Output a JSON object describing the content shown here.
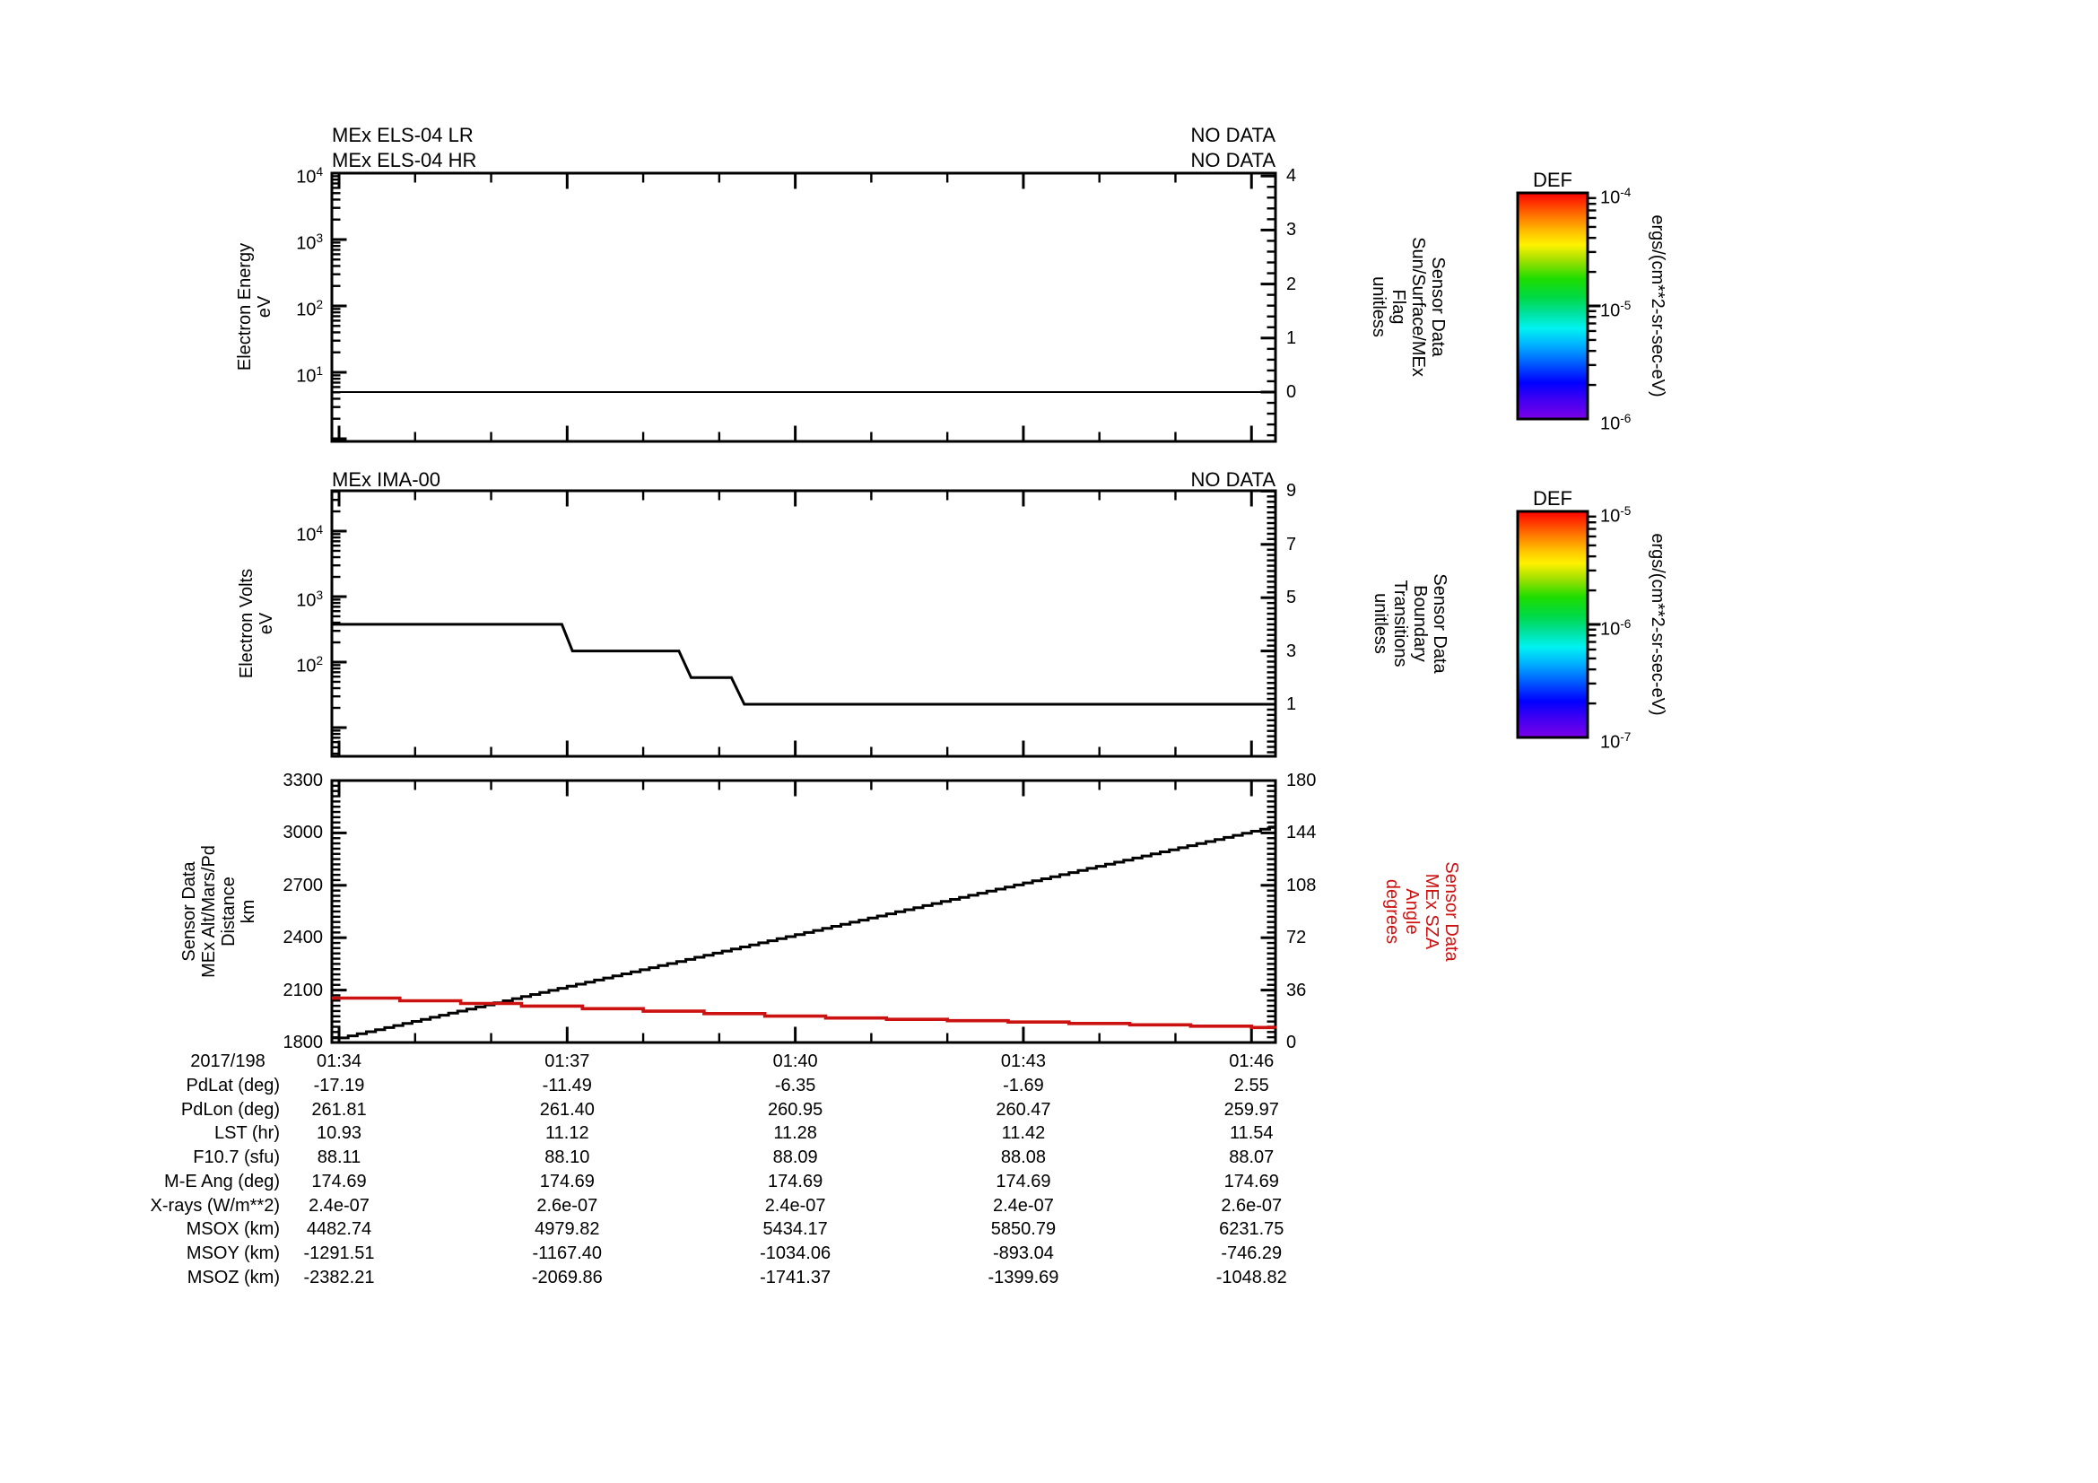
{
  "page": {
    "background": "#ffffff"
  },
  "colors": {
    "red": "#cc1111",
    "black": "#000000"
  },
  "panels": {
    "els": {
      "title_lr": "MEx ELS-04 LR",
      "title_hr": "MEx ELS-04 HR",
      "no_data_lr": "NO DATA",
      "no_data_hr": "NO DATA",
      "left_axis_label_lines": [
        "Electron Energy",
        "eV"
      ],
      "right_axis_label_lines": [
        "Sensor Data",
        "Sun/Surface/MEx",
        "Flag",
        "unitless"
      ],
      "left_tick_exponents": [
        4,
        3,
        2,
        1
      ],
      "right_tick_labels": [
        4,
        3,
        2,
        1,
        0
      ]
    },
    "ima": {
      "title": "MEx IMA-00",
      "no_data": "NO DATA",
      "left_axis_label_lines": [
        "Electron Volts",
        "eV"
      ],
      "right_axis_label_lines": [
        "Sensor Data",
        "Boundary",
        "Transitions",
        "unitless"
      ],
      "left_tick_exponents": [
        4,
        3,
        2
      ],
      "right_tick_labels": [
        9,
        7,
        5,
        3,
        1
      ]
    },
    "alt": {
      "left_axis_label_lines": [
        "Sensor Data",
        "MEx Alt/Mars/Pd",
        "Distance",
        "km"
      ],
      "right_axis_label_lines": [
        "Sensor Data",
        "MEx SZA",
        "Angle",
        "degrees"
      ],
      "left_tick_labels": [
        3300,
        3000,
        2700,
        2400,
        2100,
        1800
      ],
      "right_tick_labels": [
        180,
        144,
        108,
        72,
        36,
        0
      ]
    }
  },
  "time_axis": {
    "date_label": "2017/198",
    "tick_labels": [
      "01:34",
      "01:37",
      "01:40",
      "01:43",
      "01:46"
    ]
  },
  "colorbars": [
    {
      "title": "DEF",
      "unit": "ergs/(cm**2-sr-sec-eV)",
      "tick_exponents": [
        -4,
        -5,
        -6
      ]
    },
    {
      "title": "DEF",
      "unit": "ergs/(cm**2-sr-sec-eV)",
      "tick_exponents": [
        -5,
        -6,
        -7
      ]
    }
  ],
  "table": {
    "row_labels": [
      "PdLat (deg)",
      "PdLon (deg)",
      "LST (hr)",
      "F10.7 (sfu)",
      "M-E Ang (deg)",
      "X-rays (W/m**2)",
      "MSOX (km)",
      "MSOY (km)",
      "MSOZ (km)"
    ],
    "rows": [
      [
        "-17.19",
        "-11.49",
        "-6.35",
        "-1.69",
        "2.55"
      ],
      [
        "261.81",
        "261.40",
        "260.95",
        "260.47",
        "259.97"
      ],
      [
        "10.93",
        "11.12",
        "11.28",
        "11.42",
        "11.54"
      ],
      [
        "88.11",
        "88.10",
        "88.09",
        "88.08",
        "88.07"
      ],
      [
        "174.69",
        "174.69",
        "174.69",
        "174.69",
        "174.69"
      ],
      [
        "2.4e-07",
        "2.6e-07",
        "2.4e-07",
        "2.4e-07",
        "2.6e-07"
      ],
      [
        "4482.74",
        "4979.82",
        "5434.17",
        "5850.79",
        "6231.75"
      ],
      [
        "-1291.51",
        "-1167.40",
        "-1034.06",
        "-893.04",
        "-746.29"
      ],
      [
        "-2382.21",
        "-2069.86",
        "-1741.37",
        "-1399.69",
        "-1048.82"
      ]
    ]
  },
  "chart_data": [
    {
      "type": "line",
      "panel": "els",
      "title": "MEx ELS-04 LR / MEx ELS-04 HR",
      "status": "NO DATA",
      "x_axis": {
        "date": "2017/198",
        "ticks": [
          "01:34",
          "01:37",
          "01:40",
          "01:43",
          "01:46"
        ],
        "tick_interval_min": 3,
        "span_min": 12.31
      },
      "y_left": {
        "label": "Electron Energy (eV)",
        "scale": "log",
        "range": [
          1,
          10000
        ]
      },
      "y_right": {
        "label": "Sensor Data Sun/Surface/MEx Flag (unitless)",
        "range": [
          -0.85,
          4.05
        ],
        "ticks": [
          0,
          1,
          2,
          3,
          4
        ]
      },
      "series": [
        {
          "name": "Sun/Surface/MEx Flag",
          "axis": "right",
          "color": "black",
          "style": "line",
          "x_min": [
            0,
            12.31
          ],
          "y": [
            0,
            0
          ]
        }
      ]
    },
    {
      "type": "line",
      "panel": "ima",
      "title": "MEx IMA-00",
      "status": "NO DATA",
      "x_axis": {
        "date": "2017/198",
        "ticks": [
          "01:34",
          "01:37",
          "01:40",
          "01:43",
          "01:46"
        ],
        "tick_interval_min": 3,
        "span_min": 12.31
      },
      "y_left": {
        "label": "Electron Volts (eV)",
        "scale": "log",
        "decade_labels": [
          10000,
          1000,
          100
        ]
      },
      "y_right": {
        "label": "Sensor Data Boundary Transitions (unitless)",
        "range": [
          -0.9,
          9.02
        ],
        "ticks": [
          1,
          3,
          5,
          7,
          9
        ]
      },
      "series": [
        {
          "name": "Boundary Transitions",
          "axis": "right",
          "color": "black",
          "style": "line",
          "x_min": [
            0,
            2.93,
            3.07,
            4.47,
            4.63,
            5.16,
            5.33,
            12.31
          ],
          "y": [
            4,
            4,
            3,
            3,
            2,
            2,
            1,
            1
          ]
        }
      ]
    },
    {
      "type": "line",
      "panel": "alt",
      "x_axis": {
        "date": "2017/198",
        "ticks": [
          "01:34",
          "01:37",
          "01:40",
          "01:43",
          "01:46"
        ],
        "tick_interval_min": 3,
        "span_min": 12.31
      },
      "y_left": {
        "label": "Sensor Data MEx Alt/Mars/Pd Distance (km)",
        "range": [
          1800,
          3300
        ],
        "ticks": [
          1800,
          2100,
          2400,
          2700,
          3000,
          3300
        ]
      },
      "y_right": {
        "label": "Sensor Data MEx SZA Angle (degrees)",
        "range": [
          0,
          180
        ],
        "ticks": [
          0,
          36,
          72,
          108,
          144,
          180
        ]
      },
      "series": [
        {
          "name": "MEx Alt/Mars/Pd Distance",
          "axis": "left",
          "color": "black",
          "style": "stairstep",
          "x_min": [
            0,
            3,
            6,
            9,
            12,
            12.31
          ],
          "y": [
            1826,
            2122,
            2418,
            2714,
            3010,
            3040
          ]
        },
        {
          "name": "MEx SZA Angle",
          "axis": "right",
          "color": "red",
          "style": "stairstep",
          "x_min": [
            0,
            2,
            4,
            6,
            8,
            10,
            12,
            12.31
          ],
          "y": [
            30.5,
            25.9,
            21.5,
            17.3,
            15.0,
            12.6,
            10.3,
            9.8
          ]
        }
      ]
    }
  ]
}
